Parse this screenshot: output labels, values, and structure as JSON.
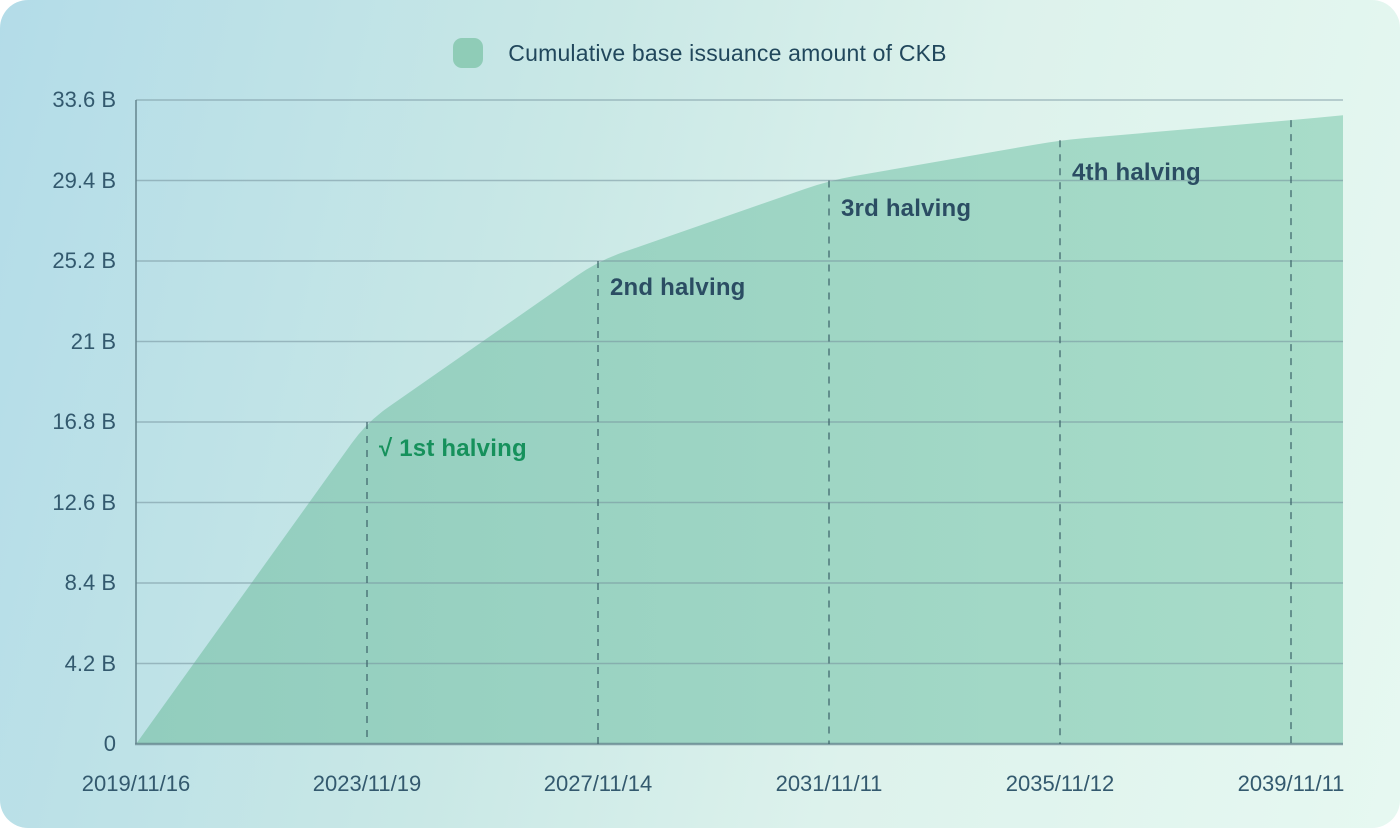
{
  "legend": {
    "label": "Cumulative base issuance amount of CKB"
  },
  "chart_data": {
    "type": "area",
    "series_name": "Cumulative base issuance amount of CKB",
    "x_tick_labels": [
      "2019/11/16",
      "2023/11/19",
      "2027/11/14",
      "2031/11/11",
      "2035/11/12",
      "2039/11/11"
    ],
    "y_tick_values": [
      0,
      4.2,
      8.4,
      12.6,
      16.8,
      21,
      25.2,
      29.4,
      33.6
    ],
    "y_tick_labels": [
      "0",
      "4.2 B",
      "8.4 B",
      "12.6 B",
      "16.8 B",
      "21 B",
      "25.2 B",
      "29.4 B",
      "33.6 B"
    ],
    "ylim": [
      0,
      33.6
    ],
    "grid": true,
    "legend_position": "top-center",
    "points": [
      {
        "x": "2019/11/16",
        "y": 0
      },
      {
        "x": "2023/11/19",
        "y": 16.8
      },
      {
        "x": "2027/11/14",
        "y": 25.2
      },
      {
        "x": "2031/11/11",
        "y": 29.4
      },
      {
        "x": "2035/11/12",
        "y": 31.5
      },
      {
        "x": "2039/11/11",
        "y": 32.55
      },
      {
        "x": "end",
        "y": 32.8
      }
    ],
    "halving_lines": [
      {
        "x": "2023/11/19",
        "y": 16.8
      },
      {
        "x": "2027/11/14",
        "y": 25.2
      },
      {
        "x": "2031/11/11",
        "y": 29.4
      },
      {
        "x": "2035/11/12",
        "y": 31.5
      },
      {
        "x": "2039/11/11",
        "y": 32.55
      }
    ],
    "annotations": [
      {
        "label": "√ 1st halving",
        "x": "2023/11/19",
        "y": 15.4,
        "color": "#16915c"
      },
      {
        "label": "2nd halving",
        "x": "2027/11/14",
        "y": 23.8,
        "color": "#2b4d63"
      },
      {
        "label": "3rd halving",
        "x": "2031/11/11",
        "y": 27.9,
        "color": "#2b4d63"
      },
      {
        "label": "4th halving",
        "x": "2035/11/12",
        "y": 29.8,
        "color": "#2b4d63"
      }
    ],
    "colors": {
      "area_fill_left": "#92cdbe",
      "area_fill_right": "#a8dcc9",
      "legend_swatch": "#8fccb7",
      "gridline": "rgba(116,146,156,0.55)",
      "axis_line": "rgba(100,132,142,0.75)",
      "dashed_line": "rgba(62,100,106,0.62)",
      "tick_text": "#33596e",
      "legend_text": "#21475c"
    }
  }
}
